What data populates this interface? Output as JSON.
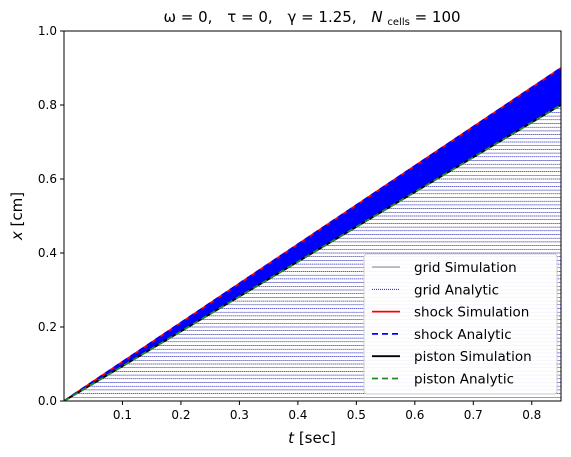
{
  "chart_data": {
    "type": "line",
    "title": {
      "omega_label": "ω = 0,",
      "tau_label": "τ = 0,",
      "gamma_label": "γ = 1.25,",
      "ncells_base": "N",
      "ncells_sub": "cells",
      "ncells_value": " = 100"
    },
    "xlabel": "t [sec]",
    "xlabel_var": "t",
    "xlabel_unit": " [sec]",
    "ylabel": "x [cm]",
    "ylabel_var": "x",
    "ylabel_unit": " [cm]",
    "xlim": [
      0.0,
      0.85
    ],
    "ylim": [
      0.0,
      1.0
    ],
    "xticks": [
      "0.1",
      "0.2",
      "0.3",
      "0.4",
      "0.5",
      "0.6",
      "0.7",
      "0.8"
    ],
    "yticks": [
      "0.0",
      "0.2",
      "0.4",
      "0.6",
      "0.8",
      "1.0"
    ],
    "n_cells": 100,
    "piston_velocity": 0.94,
    "shock_velocity": 1.06,
    "series": [
      {
        "name": "grid Simulation",
        "color": "#808080",
        "style": "solid"
      },
      {
        "name": "grid Analytic",
        "color": "#0000cc",
        "style": "dotted"
      },
      {
        "name": "shock Simulation",
        "color": "#ff0000",
        "style": "solid",
        "x": [
          0.0,
          0.85
        ],
        "y": [
          0.0,
          0.9
        ]
      },
      {
        "name": "shock Analytic",
        "color": "#0000ff",
        "style": "dashed",
        "x": [
          0.0,
          0.85
        ],
        "y": [
          0.0,
          0.9
        ]
      },
      {
        "name": "piston Simulation",
        "color": "#000000",
        "style": "solid",
        "x": [
          0.0,
          0.85
        ],
        "y": [
          0.0,
          0.8
        ]
      },
      {
        "name": "piston Analytic",
        "color": "#228b22",
        "style": "dashed",
        "x": [
          0.0,
          0.85
        ],
        "y": [
          0.0,
          0.8
        ]
      }
    ],
    "legend_position": "lower-right",
    "grid": false
  }
}
